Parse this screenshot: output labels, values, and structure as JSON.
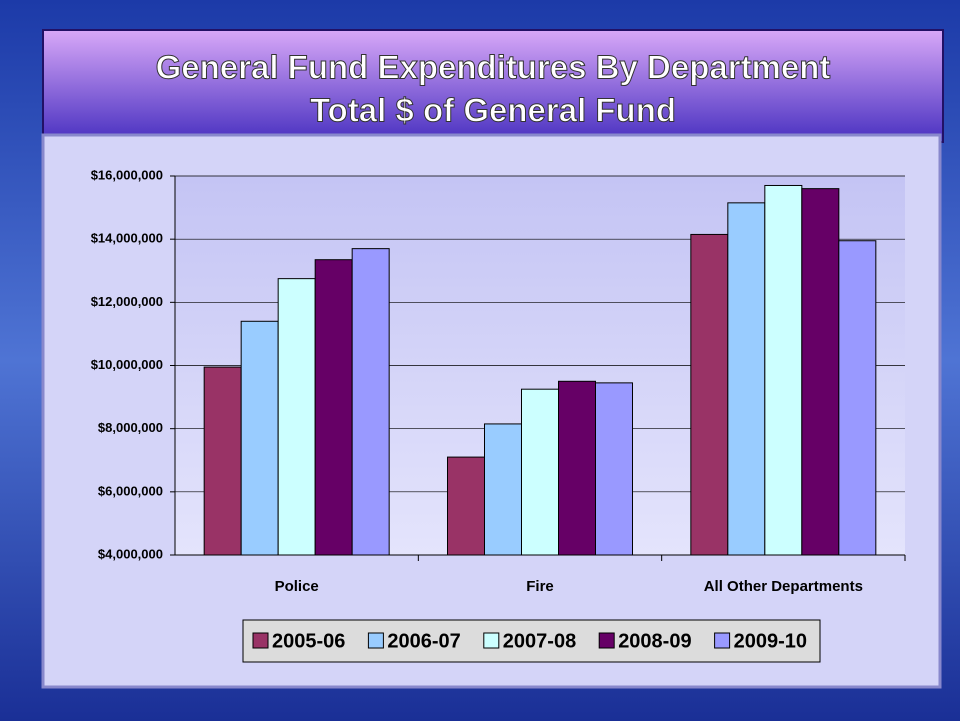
{
  "chart_data": {
    "type": "bar",
    "title": "General Fund Expenditures By Department",
    "subtitle": "Total $ of General Fund",
    "categories": [
      "Police",
      "Fire",
      "All Other Departments"
    ],
    "series": [
      {
        "name": "2005-06",
        "color": "#993366",
        "values": [
          9950000,
          7100000,
          14150000
        ]
      },
      {
        "name": "2006-07",
        "color": "#99ccff",
        "values": [
          11400000,
          8150000,
          15150000
        ]
      },
      {
        "name": "2007-08",
        "color": "#ccffff",
        "values": [
          12750000,
          9250000,
          15700000
        ]
      },
      {
        "name": "2008-09",
        "color": "#660066",
        "values": [
          13350000,
          9500000,
          15600000
        ]
      },
      {
        "name": "2009-10",
        "color": "#9999ff",
        "values": [
          13700000,
          9450000,
          13950000
        ]
      }
    ],
    "ylim": [
      4000000,
      16000000
    ],
    "yticks": [
      {
        "value": 4000000,
        "label": "$4,000,000"
      },
      {
        "value": 6000000,
        "label": "$6,000,000"
      },
      {
        "value": 8000000,
        "label": "$8,000,000"
      },
      {
        "value": 10000000,
        "label": "$10,000,000"
      },
      {
        "value": 12000000,
        "label": "$12,000,000"
      },
      {
        "value": 14000000,
        "label": "$14,000,000"
      },
      {
        "value": 16000000,
        "label": "$16,000,000"
      }
    ],
    "grid": true,
    "legend": "bottom"
  }
}
